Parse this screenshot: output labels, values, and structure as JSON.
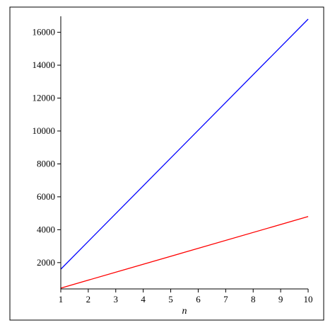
{
  "chart_data": {
    "type": "line",
    "title": "",
    "xlabel": "n",
    "ylabel": "",
    "xlim": [
      1,
      10
    ],
    "ylim": [
      400,
      16800
    ],
    "x_ticks": [
      1,
      2,
      3,
      4,
      5,
      6,
      7,
      8,
      9,
      10
    ],
    "y_ticks": [
      2000,
      4000,
      6000,
      8000,
      10000,
      12000,
      14000,
      16000
    ],
    "grid": false,
    "legend": "none",
    "series": [
      {
        "color": "#0000ff",
        "x": [
          1,
          10
        ],
        "y": [
          1600,
          16800
        ]
      },
      {
        "color": "#ff0000",
        "x": [
          1,
          10
        ],
        "y": [
          450,
          4800
        ]
      }
    ]
  }
}
